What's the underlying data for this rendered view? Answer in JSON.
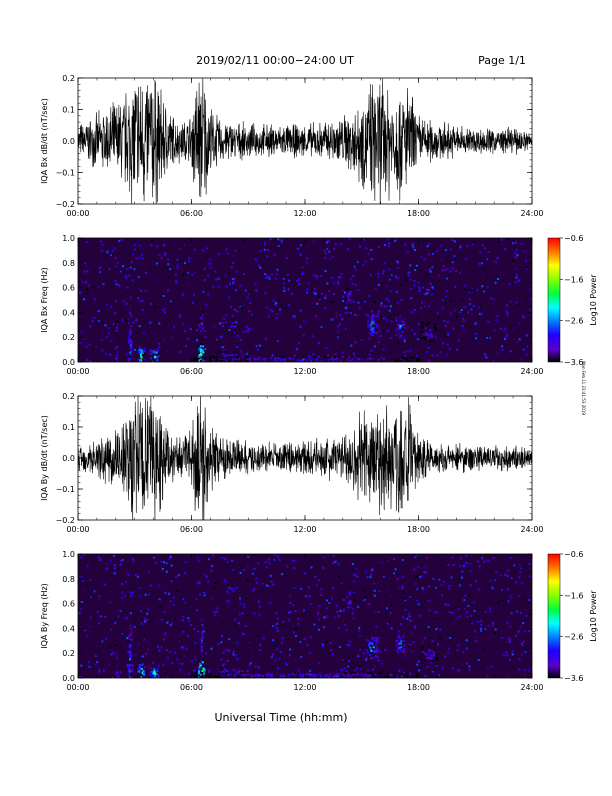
{
  "header": {
    "date_range": "2019/02/11  00:00−24:00 UT",
    "page": "Page 1/1"
  },
  "side_note": "Mon Feb 11 23:41:53 2019",
  "xlabel": "Universal Time (hh:mm)",
  "colors": {
    "trace": "#000000",
    "spectrogram_background": "#24003c",
    "colorbar": [
      "#ff0000",
      "#ff8000",
      "#ffff00",
      "#80ff00",
      "#00ff40",
      "#00ffff",
      "#0080ff",
      "#2000ff",
      "#5a00c8",
      "#000000"
    ]
  },
  "chart_data": [
    {
      "type": "line",
      "ylabel": "IQA Bx dB/dt (nT/sec)",
      "ylim": [
        -0.2,
        0.2
      ],
      "y_ticks": [
        "0.2",
        "0.1",
        "0.0",
        "−0.1",
        "−0.2"
      ],
      "y_tick_values": [
        0.2,
        0.1,
        0.0,
        -0.1,
        -0.2
      ],
      "x_ticks": [
        "00:00",
        "06:00",
        "12:00",
        "18:00",
        "24:00"
      ],
      "x_tick_hours": [
        0,
        6,
        12,
        18,
        24
      ],
      "xlim_hours": [
        0,
        24
      ],
      "envelope": {
        "hours": [
          0,
          1,
          2,
          2.5,
          3,
          3.3,
          3.6,
          4,
          4.5,
          5,
          5.5,
          6,
          6.3,
          6.6,
          7,
          7.5,
          8,
          9,
          10,
          11,
          12,
          13,
          14,
          14.5,
          15,
          15.5,
          16,
          16.5,
          17,
          17.3,
          17.6,
          18,
          19,
          20,
          21,
          22,
          23,
          24
        ],
        "amplitude": [
          0.05,
          0.08,
          0.12,
          0.15,
          0.22,
          0.22,
          0.22,
          0.22,
          0.14,
          0.08,
          0.06,
          0.08,
          0.22,
          0.22,
          0.1,
          0.07,
          0.06,
          0.05,
          0.05,
          0.05,
          0.05,
          0.06,
          0.08,
          0.1,
          0.14,
          0.18,
          0.2,
          0.18,
          0.17,
          0.18,
          0.15,
          0.08,
          0.06,
          0.05,
          0.04,
          0.04,
          0.04,
          0.03
        ]
      }
    },
    {
      "type": "heatmap",
      "ylabel": "IQA Bx Freq (Hz)",
      "ylim": [
        0.0,
        1.0
      ],
      "y_ticks": [
        "1.0",
        "0.8",
        "0.6",
        "0.4",
        "0.2",
        "0.0"
      ],
      "y_tick_values": [
        1.0,
        0.8,
        0.6,
        0.4,
        0.2,
        0.0
      ],
      "x_ticks": [
        "00:00",
        "06:00",
        "12:00",
        "18:00",
        "24:00"
      ],
      "x_tick_hours": [
        0,
        6,
        12,
        18,
        24
      ],
      "xlim_hours": [
        0,
        24
      ],
      "colorbar_label": "Log10 Power",
      "colorbar_ticks": [
        "−0.6",
        "−1.6",
        "−2.6",
        "−3.6"
      ],
      "colorbar_tick_values": [
        -0.6,
        -1.6,
        -2.6,
        -3.6
      ],
      "colorbar_range": [
        -3.6,
        -0.6
      ],
      "hotspots": [
        {
          "hour": 2.0,
          "freq": 0.1,
          "width_h": 0.15,
          "height_f": 0.5,
          "power": -2.6
        },
        {
          "hour": 2.7,
          "freq": 0.1,
          "width_h": 0.2,
          "height_f": 0.7,
          "power": -2.4
        },
        {
          "hour": 3.3,
          "freq": 0.05,
          "width_h": 0.4,
          "height_f": 0.15,
          "power": -1.9
        },
        {
          "hour": 4.0,
          "freq": 0.05,
          "width_h": 0.5,
          "height_f": 0.12,
          "power": -2.0
        },
        {
          "hour": 6.5,
          "freq": 0.05,
          "width_h": 0.35,
          "height_f": 0.2,
          "power": -1.6
        },
        {
          "hour": 6.5,
          "freq": 0.3,
          "width_h": 0.12,
          "height_f": 0.3,
          "power": -2.5
        },
        {
          "hour": 8.0,
          "freq": 0.05,
          "width_h": 1.5,
          "height_f": 0.08,
          "power": -2.5
        },
        {
          "hour": 14.3,
          "freq": 0.55,
          "width_h": 0.25,
          "height_f": 0.15,
          "power": -2.5
        },
        {
          "hour": 15.5,
          "freq": 0.3,
          "width_h": 0.6,
          "height_f": 0.18,
          "power": -2.3
        },
        {
          "hour": 17.0,
          "freq": 0.3,
          "width_h": 0.5,
          "height_f": 0.16,
          "power": -2.4
        },
        {
          "hour": 18.5,
          "freq": 0.25,
          "width_h": 0.8,
          "height_f": 0.15,
          "power": -2.7
        },
        {
          "hour": 12.0,
          "freq": 0.03,
          "width_h": 12.0,
          "height_f": 0.04,
          "power": -2.6
        }
      ]
    },
    {
      "type": "line",
      "ylabel": "IQA By dB/dt (nT/sec)",
      "ylim": [
        -0.2,
        0.2
      ],
      "y_ticks": [
        "0.2",
        "0.1",
        "0.0",
        "−0.1",
        "−0.2"
      ],
      "y_tick_values": [
        0.2,
        0.1,
        0.0,
        -0.1,
        -0.2
      ],
      "x_ticks": [
        "00:00",
        "06:00",
        "12:00",
        "18:00",
        "24:00"
      ],
      "x_tick_hours": [
        0,
        6,
        12,
        18,
        24
      ],
      "xlim_hours": [
        0,
        24
      ],
      "envelope": {
        "hours": [
          0,
          1,
          2,
          2.5,
          3,
          3.3,
          3.6,
          4,
          4.5,
          5,
          5.5,
          6,
          6.3,
          6.6,
          7,
          7.5,
          8,
          9,
          10,
          11,
          12,
          13,
          14,
          14.5,
          15,
          15.5,
          16,
          16.5,
          17,
          17.3,
          17.6,
          18,
          19,
          20,
          21,
          22,
          23,
          24
        ],
        "amplitude": [
          0.04,
          0.06,
          0.1,
          0.14,
          0.22,
          0.22,
          0.22,
          0.22,
          0.13,
          0.07,
          0.06,
          0.08,
          0.22,
          0.22,
          0.1,
          0.07,
          0.06,
          0.05,
          0.05,
          0.05,
          0.05,
          0.06,
          0.08,
          0.1,
          0.16,
          0.18,
          0.2,
          0.17,
          0.2,
          0.22,
          0.15,
          0.08,
          0.05,
          0.05,
          0.04,
          0.04,
          0.04,
          0.03
        ]
      }
    },
    {
      "type": "heatmap",
      "ylabel": "IQA By Freq (Hz)",
      "ylim": [
        0.0,
        1.0
      ],
      "y_ticks": [
        "1.0",
        "0.8",
        "0.6",
        "0.4",
        "0.2",
        "0.0"
      ],
      "y_tick_values": [
        1.0,
        0.8,
        0.6,
        0.4,
        0.2,
        0.0
      ],
      "x_ticks": [
        "00:00",
        "06:00",
        "12:00",
        "18:00",
        "24:00"
      ],
      "x_tick_hours": [
        0,
        6,
        12,
        18,
        24
      ],
      "xlim_hours": [
        0,
        24
      ],
      "colorbar_label": "Log10 Power",
      "colorbar_ticks": [
        "−0.6",
        "−1.6",
        "−2.6",
        "−3.6"
      ],
      "colorbar_tick_values": [
        -0.6,
        -1.6,
        -2.6,
        -3.6
      ],
      "colorbar_range": [
        -3.6,
        -0.6
      ],
      "hotspots": [
        {
          "hour": 2.0,
          "freq": 0.1,
          "width_h": 0.15,
          "height_f": 0.5,
          "power": -2.6
        },
        {
          "hour": 2.7,
          "freq": 0.1,
          "width_h": 0.2,
          "height_f": 0.8,
          "power": -2.4
        },
        {
          "hour": 3.3,
          "freq": 0.05,
          "width_h": 0.4,
          "height_f": 0.15,
          "power": -1.9
        },
        {
          "hour": 4.0,
          "freq": 0.05,
          "width_h": 0.5,
          "height_f": 0.12,
          "power": -2.0
        },
        {
          "hour": 6.5,
          "freq": 0.05,
          "width_h": 0.35,
          "height_f": 0.2,
          "power": -1.6
        },
        {
          "hour": 6.5,
          "freq": 0.3,
          "width_h": 0.12,
          "height_f": 0.3,
          "power": -2.5
        },
        {
          "hour": 8.0,
          "freq": 0.05,
          "width_h": 1.5,
          "height_f": 0.08,
          "power": -2.5
        },
        {
          "hour": 14.3,
          "freq": 0.65,
          "width_h": 0.25,
          "height_f": 0.2,
          "power": -2.5
        },
        {
          "hour": 15.5,
          "freq": 0.25,
          "width_h": 0.6,
          "height_f": 0.18,
          "power": -2.2
        },
        {
          "hour": 17.0,
          "freq": 0.28,
          "width_h": 0.5,
          "height_f": 0.16,
          "power": -2.3
        },
        {
          "hour": 18.5,
          "freq": 0.2,
          "width_h": 0.8,
          "height_f": 0.12,
          "power": -2.6
        },
        {
          "hour": 12.0,
          "freq": 0.03,
          "width_h": 12.0,
          "height_f": 0.04,
          "power": -2.6
        }
      ]
    }
  ]
}
